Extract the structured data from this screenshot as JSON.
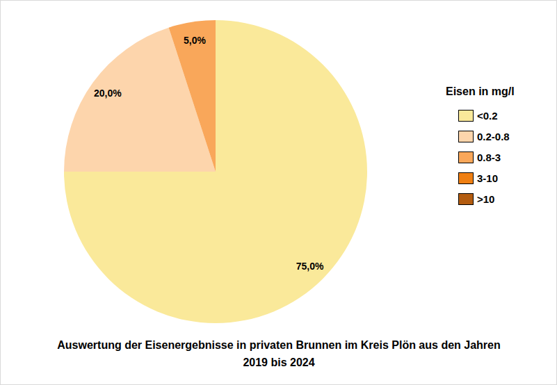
{
  "chart_data": {
    "type": "pie",
    "title": "Auswertung der Eisenergebnisse in privaten Brunnen im Kreis Plön aus den Jahren 2019 bis 2024",
    "legend_title": "Eisen in mg/l",
    "categories": [
      "<0.2",
      "0.2-0.8",
      "0.8-3",
      "3-10",
      ">10"
    ],
    "values": [
      75,
      20,
      5,
      0,
      0
    ],
    "value_labels": [
      "75,0%",
      "20,0%",
      "5,0%",
      null,
      null
    ],
    "colors": [
      "#fae99a",
      "#fdd5ac",
      "#f9a75a",
      "#ef7f12",
      "#b35c10"
    ],
    "data_labels": true,
    "legend": "right"
  }
}
